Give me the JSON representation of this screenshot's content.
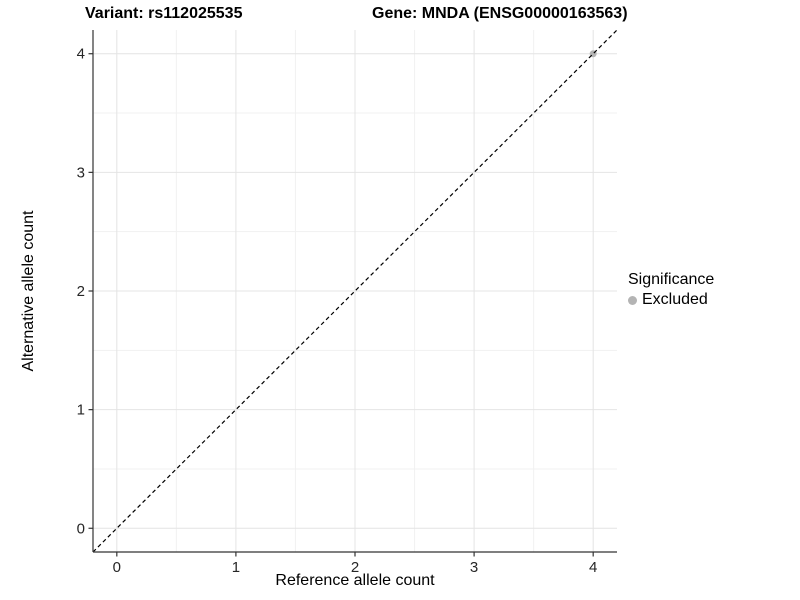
{
  "header": {
    "variant_title": "Variant: rs112025535",
    "gene_title": "Gene: MNDA (ENSG00000163563)"
  },
  "chart_data": {
    "type": "scatter",
    "xlabel": "Reference allele count",
    "ylabel": "Alternative allele count",
    "xlim": [
      -0.2,
      4.2
    ],
    "ylim": [
      -0.2,
      4.2
    ],
    "xticks": [
      0,
      1,
      2,
      3,
      4
    ],
    "yticks": [
      0,
      1,
      2,
      3,
      4
    ],
    "xtick_labels": [
      "0",
      "1",
      "2",
      "3",
      "4"
    ],
    "ytick_labels": [
      "0",
      "1",
      "2",
      "3",
      "4"
    ],
    "x_minor_ticks": [
      0.5,
      1.5,
      2.5,
      3.5
    ],
    "y_minor_ticks": [
      0.5,
      1.5,
      2.5,
      3.5
    ],
    "grid": true,
    "series": [
      {
        "name": "Excluded",
        "color": "#b4b4b4",
        "points": [
          {
            "x": 4,
            "y": 4
          }
        ]
      }
    ],
    "reference_line": {
      "slope": 1,
      "intercept": 0,
      "style": "dashed",
      "color": "#000000"
    },
    "legend": {
      "title": "Significance",
      "position": "right",
      "items": [
        {
          "label": "Excluded",
          "color": "#b4b4b4"
        }
      ]
    }
  },
  "colors": {
    "grid_major": "#e4e4e4",
    "grid_minor": "#f1f1f1",
    "axis_line": "#333333",
    "tick_mark": "#333333",
    "tick_label": "#262626",
    "background": "#ffffff"
  }
}
